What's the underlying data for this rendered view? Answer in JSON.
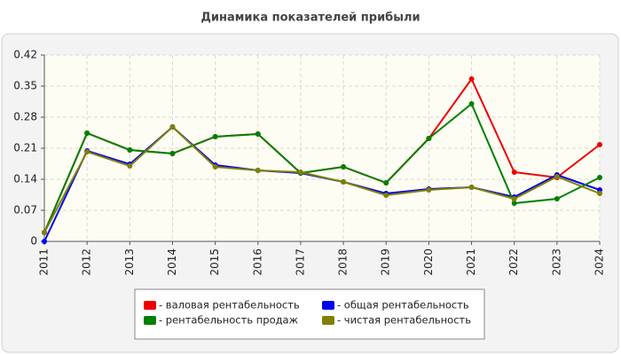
{
  "chart_data": {
    "type": "line",
    "title": "Динамика показателей прибыли",
    "categories": [
      "2011",
      "2012",
      "2013",
      "2014",
      "2015",
      "2016",
      "2017",
      "2018",
      "2019",
      "2020",
      "2021",
      "2022",
      "2023",
      "2024"
    ],
    "series": [
      {
        "name": "- валовая рентабельность",
        "color": "#ee0000",
        "values": [
          0.02,
          0.244,
          0.206,
          0.198,
          0.236,
          0.242,
          0.154,
          0.168,
          0.132,
          0.232,
          0.366,
          0.156,
          0.144,
          0.218
        ]
      },
      {
        "name": "- общая рентабельность",
        "color": "#0000ee",
        "values": [
          0,
          0.204,
          0.174,
          0.258,
          0.172,
          0.16,
          0.154,
          0.134,
          0.108,
          0.118,
          0.122,
          0.1,
          0.15,
          0.116
        ]
      },
      {
        "name": "- рентабельность продаж",
        "color": "#008000",
        "values": [
          0.02,
          0.244,
          0.206,
          0.198,
          0.236,
          0.242,
          0.154,
          0.168,
          0.132,
          0.232,
          0.31,
          0.086,
          0.096,
          0.144
        ]
      },
      {
        "name": "- чистая рентабельность",
        "color": "#808000",
        "values": [
          0.02,
          0.202,
          0.17,
          0.258,
          0.168,
          0.16,
          0.156,
          0.134,
          0.104,
          0.116,
          0.122,
          0.096,
          0.146,
          0.108
        ]
      }
    ],
    "ylim": [
      0,
      0.42
    ],
    "yticks": [
      0,
      0.07,
      0.14,
      0.21,
      0.28,
      0.35,
      0.42
    ],
    "grid": true,
    "legend": "bottom"
  }
}
